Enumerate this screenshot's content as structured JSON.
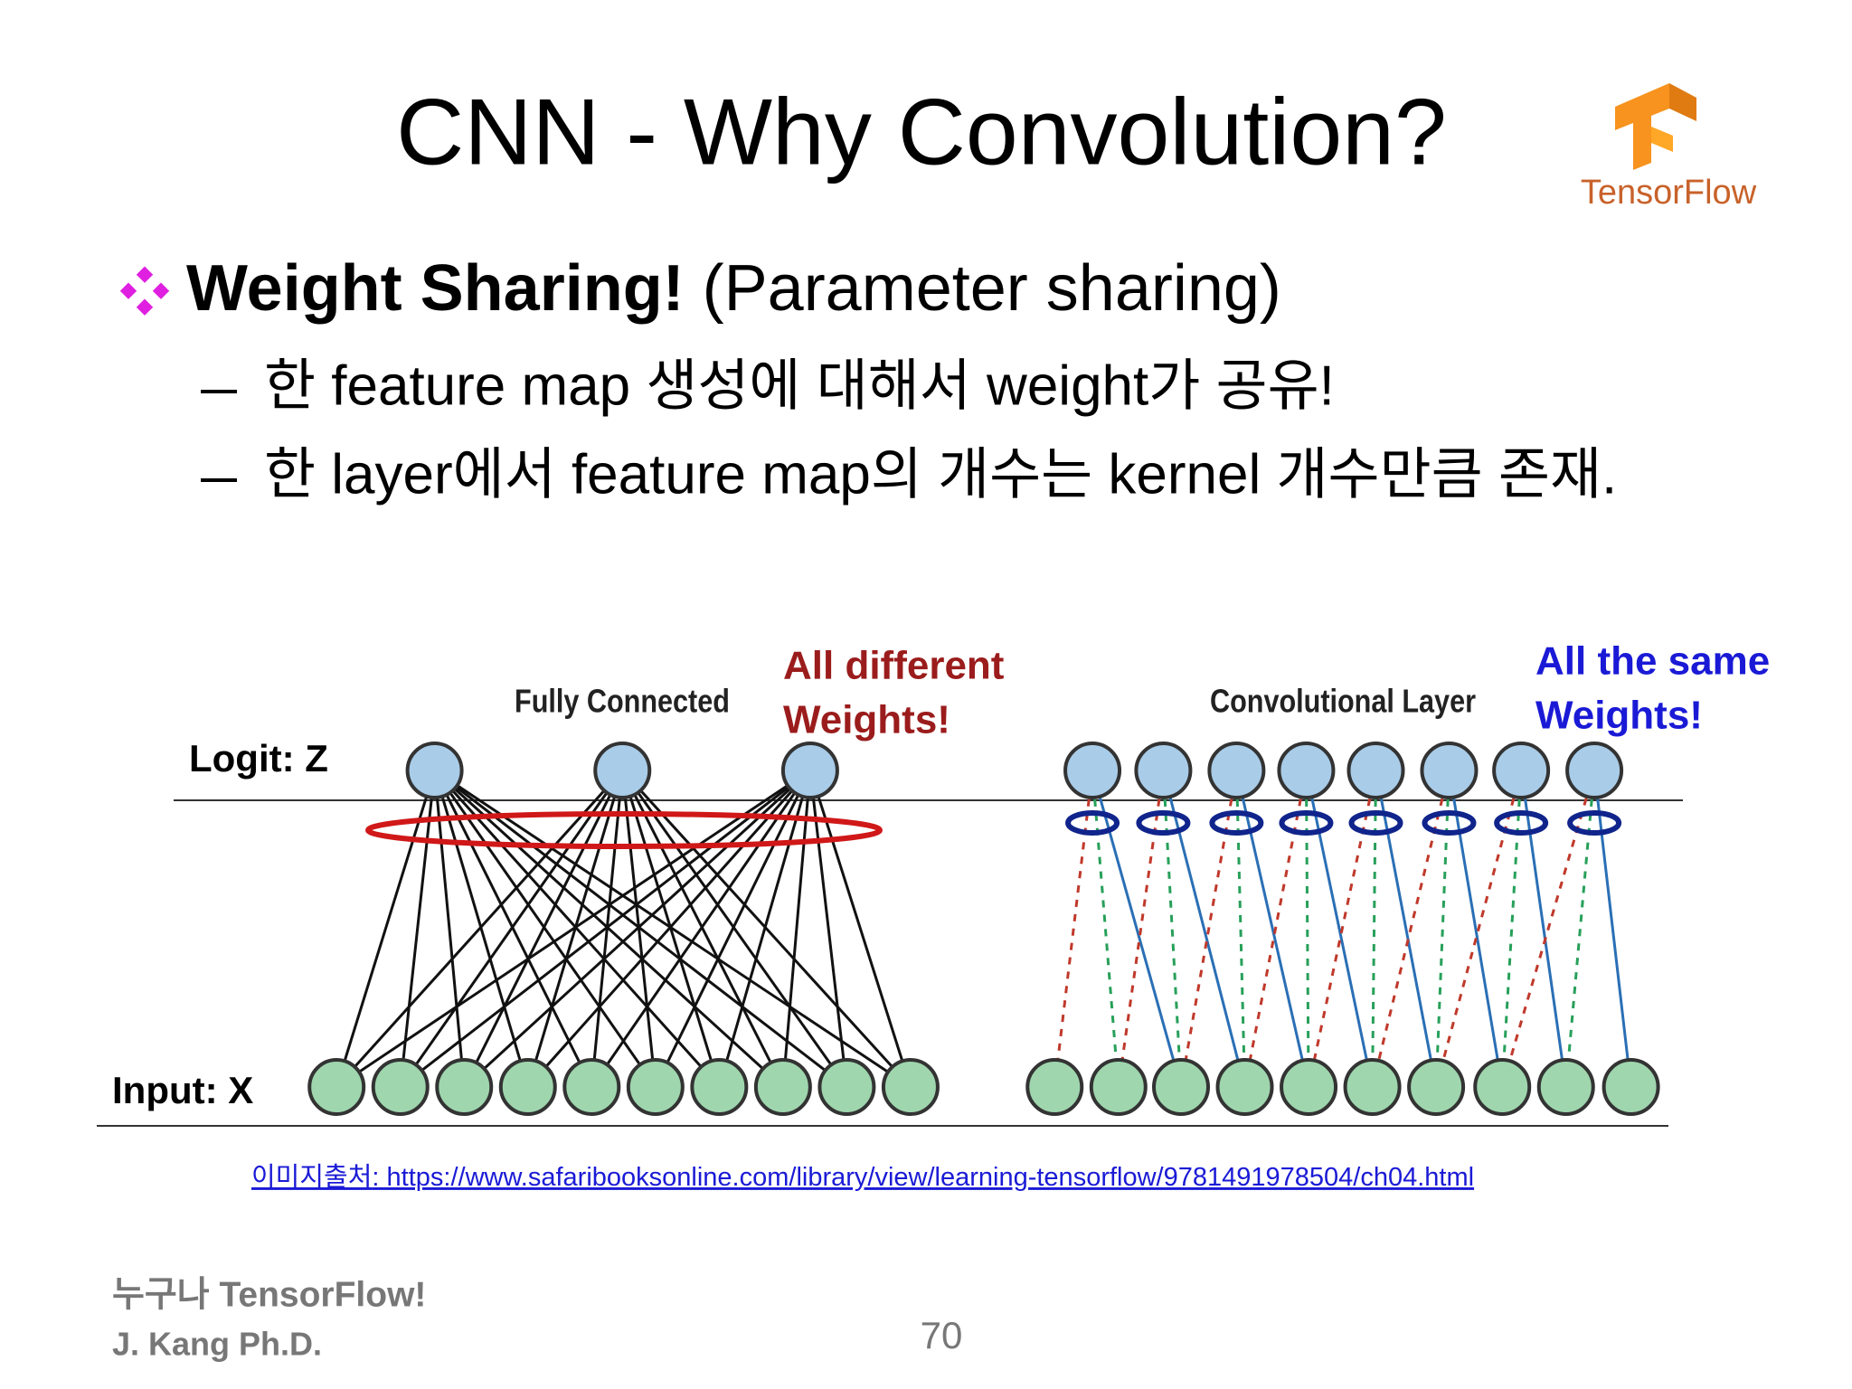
{
  "slide": {
    "title": "CNN - Why Convolution?",
    "logo": {
      "text": "TensorFlow"
    },
    "bullet": {
      "bold": "Weight Sharing!",
      "rest": " (Parameter sharing)",
      "subs": [
        "한 feature map 생성에 대해서 weight가 공유!",
        "한 layer에서 feature map의 개수는 kernel 개수만큼 존재."
      ]
    },
    "figure": {
      "fc_label": "Fully Connected",
      "conv_label": "Convolutional Layer",
      "fc_note": [
        "All different",
        "Weights!"
      ],
      "conv_note": [
        "All the same",
        "Weights!"
      ],
      "logit_label": "Logit: Z",
      "input_label": "Input: X"
    },
    "source": {
      "prefix": "이미지출처",
      "url": ": https://www.safaribooksonline.com/library/view/learning-tensorflow/9781491978504/ch04.html"
    },
    "footer": {
      "line1": "누구나 TensorFlow!",
      "line2": "J. Kang Ph.D."
    },
    "page_number": "70"
  }
}
